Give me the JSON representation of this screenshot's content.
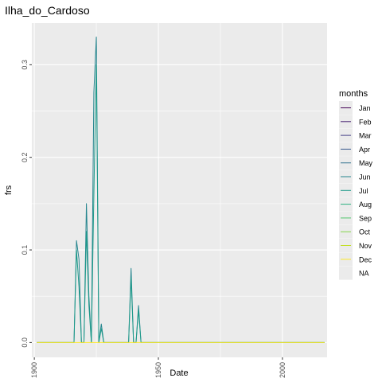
{
  "chart_data": {
    "type": "line",
    "title": "Ilha_do_Cardoso",
    "xlabel": "Date",
    "ylabel": "frs",
    "xlim": [
      1899,
      2018
    ],
    "ylim": [
      -0.016,
      0.345
    ],
    "x_ticks": [
      1900,
      1950,
      2000
    ],
    "x_tick_labels": [
      "1900",
      "1950",
      "2000"
    ],
    "y_ticks": [
      0.0,
      0.1,
      0.2,
      0.3
    ],
    "y_tick_labels": [
      "0.0",
      "0.1",
      "0.2",
      "0.3"
    ],
    "grid": true,
    "legend": {
      "title": "months",
      "placement": "right",
      "entries": [
        {
          "label": "Jan",
          "color": "#440154"
        },
        {
          "label": "Feb",
          "color": "#482173"
        },
        {
          "label": "Mar",
          "color": "#433E85"
        },
        {
          "label": "Apr",
          "color": "#38588C"
        },
        {
          "label": "May",
          "color": "#2D708E"
        },
        {
          "label": "Jun",
          "color": "#25858E"
        },
        {
          "label": "Jul",
          "color": "#1E9B8A"
        },
        {
          "label": "Aug",
          "color": "#2BB07F"
        },
        {
          "label": "Sep",
          "color": "#51C56A"
        },
        {
          "label": "Oct",
          "color": "#85D54A"
        },
        {
          "label": "Nov",
          "color": "#C2DF23"
        },
        {
          "label": "Dec",
          "color": "#FDE725"
        },
        {
          "label": "NA",
          "color": "#7F7F7F"
        }
      ]
    },
    "series": [
      {
        "color": "#25858E",
        "points": [
          [
            1901,
            0.0
          ],
          [
            1916,
            0.0
          ],
          [
            1917,
            0.11
          ],
          [
            1918,
            0.09
          ],
          [
            1919,
            0.0
          ],
          [
            1920,
            0.0
          ],
          [
            1921,
            0.15
          ],
          [
            1922,
            0.05
          ],
          [
            1923,
            0.0
          ],
          [
            1924,
            0.27
          ],
          [
            1925,
            0.33
          ],
          [
            1926,
            0.0
          ],
          [
            1927,
            0.02
          ],
          [
            1928,
            0.0
          ],
          [
            1938,
            0.0
          ],
          [
            1939,
            0.08
          ],
          [
            1940,
            0.0
          ],
          [
            1941,
            0.0
          ],
          [
            1942,
            0.04
          ],
          [
            1943,
            0.0
          ],
          [
            2017,
            0.0
          ]
        ]
      },
      {
        "color": "#1E9B8A",
        "points": [
          [
            1901,
            0.0
          ],
          [
            1916,
            0.0
          ],
          [
            1917,
            0.1
          ],
          [
            1918,
            0.06
          ],
          [
            1919,
            0.0
          ],
          [
            1920,
            0.0
          ],
          [
            1921,
            0.12
          ],
          [
            1922,
            0.04
          ],
          [
            1923,
            0.0
          ],
          [
            1924,
            0.16
          ],
          [
            1925,
            0.3
          ],
          [
            1926,
            0.0
          ],
          [
            1927,
            0.015
          ],
          [
            1928,
            0.0
          ],
          [
            1938,
            0.0
          ],
          [
            1939,
            0.07
          ],
          [
            1940,
            0.0
          ],
          [
            1941,
            0.0
          ],
          [
            1942,
            0.035
          ],
          [
            1943,
            0.0
          ],
          [
            2017,
            0.0
          ]
        ]
      },
      {
        "color": "#FDE725",
        "points": [
          [
            1901,
            0.0
          ],
          [
            2017,
            0.0
          ]
        ]
      }
    ]
  }
}
